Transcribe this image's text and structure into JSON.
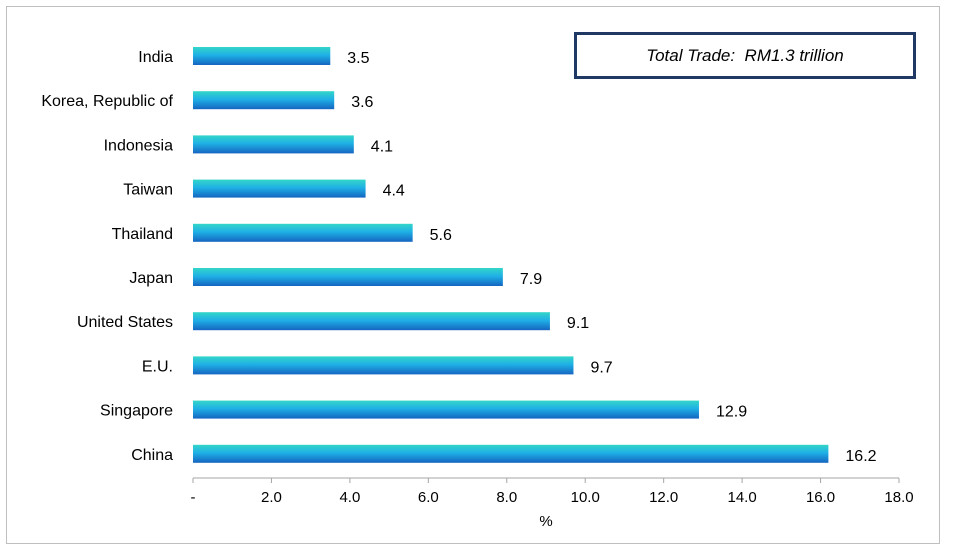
{
  "chart_data": {
    "type": "bar",
    "orientation": "horizontal",
    "categories": [
      "India",
      "Korea, Republic of",
      "Indonesia",
      "Taiwan",
      "Thailand",
      "Japan",
      "United States",
      "E.U.",
      "Singapore",
      "China"
    ],
    "values": [
      3.5,
      3.6,
      4.1,
      4.4,
      5.6,
      7.9,
      9.1,
      9.7,
      12.9,
      16.2
    ],
    "value_labels": [
      "3.5",
      "3.6",
      "4.1",
      "4.4",
      "5.6",
      "7.9",
      "9.1",
      "9.7",
      "12.9",
      "16.2"
    ],
    "xlabel": "%",
    "xlim": [
      0,
      18
    ],
    "x_ticks": [
      0,
      2,
      4,
      6,
      8,
      10,
      12,
      14,
      16,
      18
    ],
    "x_tick_labels": [
      "-",
      "2.0",
      "4.0",
      "6.0",
      "8.0",
      "10.0",
      "12.0",
      "14.0",
      "16.0",
      "18.0"
    ],
    "annotation": "Total Trade:  RM1.3 trillion",
    "grid": false,
    "legend": "none",
    "colors": {
      "bar_top": "#33d6c8",
      "bar_mid": "#1aa3e8",
      "bar_bottom": "#1565c0",
      "axis": "#a6a6a6",
      "annotation_border": "#1f3864"
    }
  }
}
